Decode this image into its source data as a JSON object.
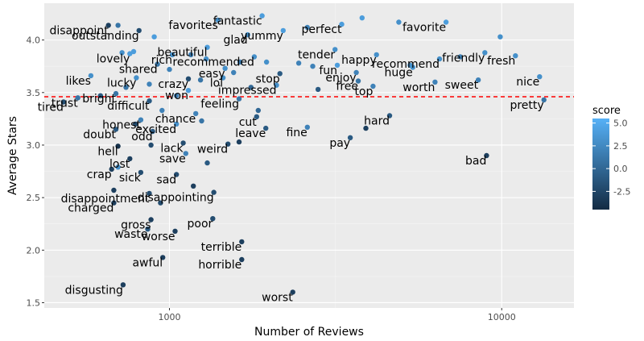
{
  "chart_data": {
    "type": "scatter",
    "xlabel": "Number of Reviews",
    "ylabel": "Average Stars",
    "x_scale": "log10",
    "xlim": [
      420,
      16500
    ],
    "ylim": [
      1.45,
      4.35
    ],
    "x_ticks": [
      {
        "value": 1000,
        "label": "1000"
      },
      {
        "value": 10000,
        "label": "10000"
      }
    ],
    "y_ticks": [
      {
        "value": 1.5,
        "label": "1.5"
      },
      {
        "value": 2.0,
        "label": "2.0"
      },
      {
        "value": 2.5,
        "label": "2.5"
      },
      {
        "value": 3.0,
        "label": "3.0"
      },
      {
        "value": 3.5,
        "label": "3.5"
      },
      {
        "value": 4.0,
        "label": "4.0"
      }
    ],
    "reference_line": {
      "y": 3.46,
      "color": "#ff0000",
      "style": "dashed"
    },
    "grid": true,
    "legend": {
      "title": "score",
      "position": "right",
      "min": -4.5,
      "max": 5.5,
      "low_color": "#132b43",
      "high_color": "#56b1f7",
      "ticks": [
        {
          "value": 5.0,
          "label": "5.0"
        },
        {
          "value": 2.5,
          "label": "2.5"
        },
        {
          "value": 0.0,
          "label": "0.0"
        },
        {
          "value": -2.5,
          "label": "-2.5"
        }
      ]
    },
    "labeled_points": [
      {
        "label": "disappoint",
        "x": 655,
        "y": 4.14,
        "score": -3
      },
      {
        "label": "outstanding",
        "x": 810,
        "y": 4.09,
        "score": -2
      },
      {
        "label": "favorites",
        "x": 1400,
        "y": 4.19,
        "score": 3
      },
      {
        "label": "fantastic",
        "x": 1900,
        "y": 4.23,
        "score": 4
      },
      {
        "label": "glad",
        "x": 1720,
        "y": 4.05,
        "score": 3
      },
      {
        "label": "yummy",
        "x": 2200,
        "y": 4.09,
        "score": 4
      },
      {
        "label": "perfect",
        "x": 3300,
        "y": 4.15,
        "score": 4
      },
      {
        "label": "favorite",
        "x": 6800,
        "y": 4.17,
        "score": 4
      },
      {
        "label": "beautiful",
        "x": 1300,
        "y": 3.93,
        "score": 4
      },
      {
        "label": "lovely",
        "x": 760,
        "y": 3.87,
        "score": 4
      },
      {
        "label": "rich",
        "x": 1020,
        "y": 3.86,
        "score": 3
      },
      {
        "label": "recommended",
        "x": 1800,
        "y": 3.84,
        "score": 3
      },
      {
        "label": "tender",
        "x": 3150,
        "y": 3.91,
        "score": 3
      },
      {
        "label": "happy",
        "x": 4200,
        "y": 3.86,
        "score": 3
      },
      {
        "label": "recommend",
        "x": 6500,
        "y": 3.82,
        "score": 3
      },
      {
        "label": "friendly",
        "x": 8900,
        "y": 3.88,
        "score": 3
      },
      {
        "label": "fresh",
        "x": 11000,
        "y": 3.85,
        "score": 3
      },
      {
        "label": "shared",
        "x": 920,
        "y": 3.77,
        "score": 1
      },
      {
        "label": "easy",
        "x": 1470,
        "y": 3.73,
        "score": 3
      },
      {
        "label": "fun",
        "x": 3200,
        "y": 3.76,
        "score": 4
      },
      {
        "label": "huge",
        "x": 5400,
        "y": 3.74,
        "score": 3
      },
      {
        "label": "likes",
        "x": 580,
        "y": 3.66,
        "score": 3
      },
      {
        "label": "lucky",
        "x": 795,
        "y": 3.64,
        "score": 3
      },
      {
        "label": "crazy",
        "x": 1140,
        "y": 3.63,
        "score": -2
      },
      {
        "label": "lol",
        "x": 1450,
        "y": 3.64,
        "score": 3
      },
      {
        "label": "stop",
        "x": 2150,
        "y": 3.68,
        "score": -1
      },
      {
        "label": "enjoy",
        "x": 3650,
        "y": 3.69,
        "score": 2
      },
      {
        "label": "free",
        "x": 3700,
        "y": 3.61,
        "score": 1
      },
      {
        "label": "top",
        "x": 4100,
        "y": 3.56,
        "score": 2
      },
      {
        "label": "worth",
        "x": 6300,
        "y": 3.6,
        "score": 2
      },
      {
        "label": "sweet",
        "x": 8500,
        "y": 3.62,
        "score": 2
      },
      {
        "label": "nice",
        "x": 13000,
        "y": 3.65,
        "score": 3
      },
      {
        "label": "impressed",
        "x": 2100,
        "y": 3.57,
        "score": 3
      },
      {
        "label": "won",
        "x": 1140,
        "y": 3.52,
        "score": 4
      },
      {
        "label": "trust",
        "x": 530,
        "y": 3.45,
        "score": 1
      },
      {
        "label": "bright",
        "x": 690,
        "y": 3.49,
        "score": 1
      },
      {
        "label": "tired",
        "x": 480,
        "y": 3.41,
        "score": -2
      },
      {
        "label": "difficult",
        "x": 870,
        "y": 3.42,
        "score": -1
      },
      {
        "label": "feeling",
        "x": 1620,
        "y": 3.44,
        "score": 1
      },
      {
        "label": "pretty",
        "x": 13400,
        "y": 3.43,
        "score": 1
      },
      {
        "label": "chance",
        "x": 1200,
        "y": 3.3,
        "score": 2
      },
      {
        "label": "honest",
        "x": 820,
        "y": 3.24,
        "score": 2
      },
      {
        "label": "cut",
        "x": 1830,
        "y": 3.27,
        "score": -1
      },
      {
        "label": "hard",
        "x": 4600,
        "y": 3.28,
        "score": -1
      },
      {
        "label": "excited",
        "x": 1050,
        "y": 3.2,
        "score": 3
      },
      {
        "label": "leave",
        "x": 1950,
        "y": 3.16,
        "score": -1
      },
      {
        "label": "fine",
        "x": 2600,
        "y": 3.17,
        "score": 2
      },
      {
        "label": "doubt",
        "x": 690,
        "y": 3.15,
        "score": -1
      },
      {
        "label": "odd",
        "x": 890,
        "y": 3.13,
        "score": -1
      },
      {
        "label": "pay",
        "x": 3500,
        "y": 3.07,
        "score": -1
      },
      {
        "label": "lack",
        "x": 1100,
        "y": 3.02,
        "score": -2
      },
      {
        "label": "weird",
        "x": 1500,
        "y": 3.01,
        "score": -2
      },
      {
        "label": "hell",
        "x": 700,
        "y": 2.99,
        "score": -4
      },
      {
        "label": "save",
        "x": 1120,
        "y": 2.92,
        "score": 2
      },
      {
        "label": "bad",
        "x": 9000,
        "y": 2.9,
        "score": -3
      },
      {
        "label": "lost",
        "x": 760,
        "y": 2.87,
        "score": -3
      },
      {
        "label": "sick",
        "x": 820,
        "y": 2.74,
        "score": -2
      },
      {
        "label": "sad",
        "x": 1050,
        "y": 2.72,
        "score": -2
      },
      {
        "label": "crap",
        "x": 670,
        "y": 2.77,
        "score": -3
      },
      {
        "label": "disappointment",
        "x": 870,
        "y": 2.54,
        "score": -2
      },
      {
        "label": "disappointing",
        "x": 1360,
        "y": 2.55,
        "score": -2
      },
      {
        "label": "charged",
        "x": 680,
        "y": 2.45,
        "score": -3
      },
      {
        "label": "gross",
        "x": 880,
        "y": 2.29,
        "score": -3
      },
      {
        "label": "poor",
        "x": 1350,
        "y": 2.3,
        "score": -2
      },
      {
        "label": "waste",
        "x": 860,
        "y": 2.2,
        "score": -1
      },
      {
        "label": "worse",
        "x": 1040,
        "y": 2.18,
        "score": -3
      },
      {
        "label": "terrible",
        "x": 1650,
        "y": 2.08,
        "score": -3
      },
      {
        "label": "awful",
        "x": 955,
        "y": 1.93,
        "score": -3
      },
      {
        "label": "horrible",
        "x": 1650,
        "y": 1.91,
        "score": -3
      },
      {
        "label": "disgusting",
        "x": 725,
        "y": 1.67,
        "score": -3
      },
      {
        "label": "worst",
        "x": 2350,
        "y": 1.6,
        "score": -3
      }
    ],
    "unlabeled_points": [
      {
        "x": 700,
        "y": 4.14,
        "score": 1
      },
      {
        "x": 900,
        "y": 4.03,
        "score": 4
      },
      {
        "x": 780,
        "y": 3.89,
        "score": 4
      },
      {
        "x": 720,
        "y": 3.88,
        "score": 3
      },
      {
        "x": 1160,
        "y": 3.86,
        "score": 2
      },
      {
        "x": 1290,
        "y": 3.82,
        "score": 3
      },
      {
        "x": 1630,
        "y": 3.79,
        "score": 2
      },
      {
        "x": 1960,
        "y": 3.79,
        "score": 3
      },
      {
        "x": 2450,
        "y": 3.78,
        "score": 2
      },
      {
        "x": 2700,
        "y": 3.75,
        "score": 2
      },
      {
        "x": 4900,
        "y": 4.17,
        "score": 3
      },
      {
        "x": 3800,
        "y": 4.21,
        "score": 4
      },
      {
        "x": 2600,
        "y": 4.12,
        "score": 2
      },
      {
        "x": 9900,
        "y": 4.03,
        "score": 3
      },
      {
        "x": 7500,
        "y": 3.84,
        "score": 2
      },
      {
        "x": 5300,
        "y": 3.76,
        "score": 3
      },
      {
        "x": 1000,
        "y": 3.72,
        "score": 2
      },
      {
        "x": 1560,
        "y": 3.69,
        "score": 2
      },
      {
        "x": 1240,
        "y": 3.62,
        "score": 1
      },
      {
        "x": 870,
        "y": 3.58,
        "score": 2
      },
      {
        "x": 740,
        "y": 3.55,
        "score": 1
      },
      {
        "x": 1760,
        "y": 3.55,
        "score": 0
      },
      {
        "x": 2800,
        "y": 3.53,
        "score": -1
      },
      {
        "x": 1050,
        "y": 3.47,
        "score": 2
      },
      {
        "x": 620,
        "y": 3.47,
        "score": -1
      },
      {
        "x": 1850,
        "y": 3.33,
        "score": 0
      },
      {
        "x": 950,
        "y": 3.33,
        "score": 2
      },
      {
        "x": 1250,
        "y": 3.23,
        "score": 1
      },
      {
        "x": 790,
        "y": 3.2,
        "score": -2
      },
      {
        "x": 3900,
        "y": 3.16,
        "score": -3
      },
      {
        "x": 1620,
        "y": 3.03,
        "score": -3
      },
      {
        "x": 880,
        "y": 3.0,
        "score": -2
      },
      {
        "x": 1300,
        "y": 2.83,
        "score": -1
      },
      {
        "x": 700,
        "y": 2.79,
        "score": 3
      },
      {
        "x": 940,
        "y": 2.45,
        "score": -2
      },
      {
        "x": 680,
        "y": 2.57,
        "score": -3
      },
      {
        "x": 1180,
        "y": 2.61,
        "score": -3
      }
    ]
  }
}
